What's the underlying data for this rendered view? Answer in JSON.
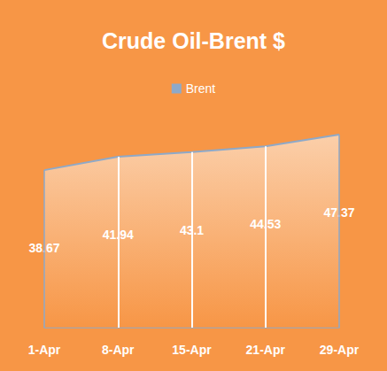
{
  "chart_data": {
    "type": "line",
    "title": "Crude Oil-Brent $",
    "categories": [
      "1-Apr",
      "8-Apr",
      "15-Apr",
      "21-Apr",
      "29-Apr"
    ],
    "series": [
      {
        "name": "Brent",
        "color": "#8EA9C8",
        "values": [
          38.67,
          41.94,
          43.1,
          44.53,
          47.37
        ]
      }
    ],
    "ylim": [
      0,
      50
    ],
    "yticks": [
      0,
      10,
      20,
      30,
      40,
      50
    ],
    "grid": false,
    "tick_labels": "x",
    "data_labels": true,
    "legend": "top"
  }
}
